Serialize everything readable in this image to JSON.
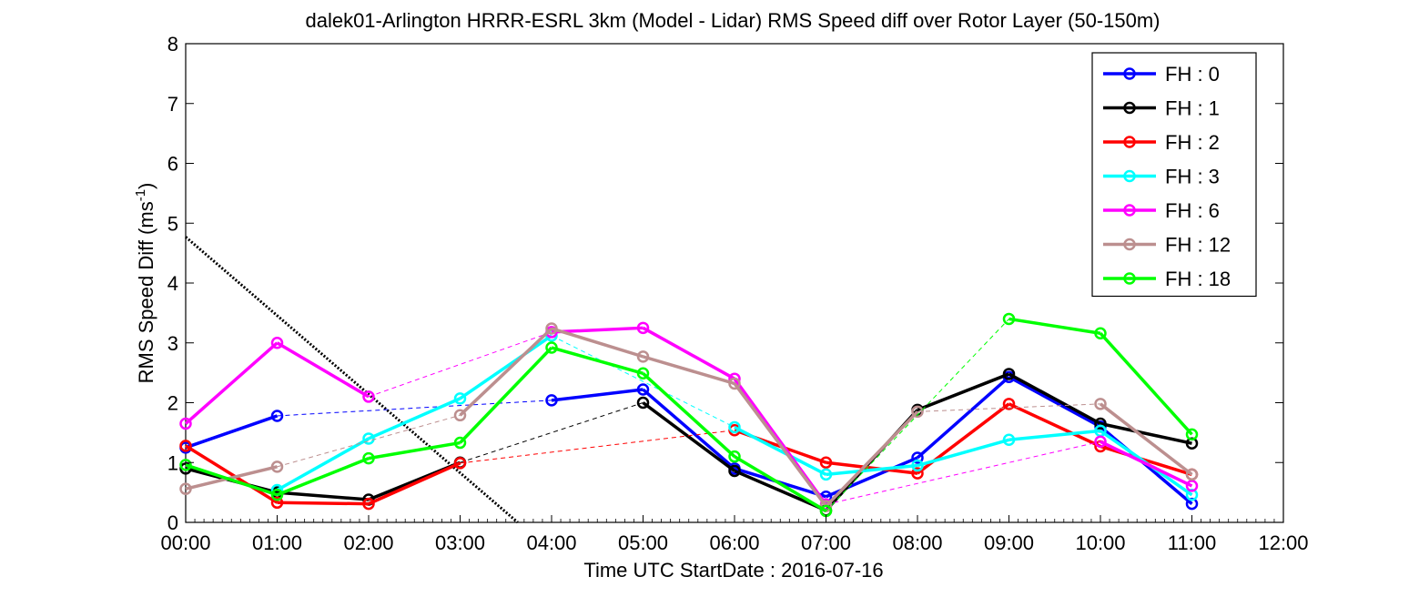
{
  "chart_data": {
    "type": "line",
    "title": "dalek01-Arlington HRRR-ESRL 3km (Model - Lidar) RMS Speed diff over Rotor Layer (50-150m)",
    "xlabel": "Time UTC    StartDate : 2016-07-16",
    "ylabel_main": "RMS Speed Diff (ms",
    "ylabel_sup": "-1",
    "ylabel_close": ")",
    "x_ticks": [
      "00:00",
      "01:00",
      "02:00",
      "03:00",
      "04:00",
      "05:00",
      "06:00",
      "07:00",
      "08:00",
      "09:00",
      "10:00",
      "11:00",
      "12:00"
    ],
    "x_hours": [
      0,
      1,
      2,
      3,
      4,
      5,
      6,
      7,
      8,
      9,
      10,
      11,
      12
    ],
    "y_ticks": [
      "0",
      "1",
      "2",
      "3",
      "4",
      "5",
      "6",
      "7",
      "8"
    ],
    "xlim": [
      0,
      12
    ],
    "ylim": [
      0,
      8
    ],
    "grid": false,
    "legend_position": "top-right",
    "series": [
      {
        "name": "FH : 0",
        "color": "#0000ff",
        "points": [
          [
            0,
            1.25
          ],
          [
            1,
            1.78
          ],
          [
            4,
            2.04
          ],
          [
            5,
            2.22
          ],
          [
            6,
            0.9
          ],
          [
            7,
            0.43
          ],
          [
            8,
            1.08
          ],
          [
            9,
            2.43
          ],
          [
            10,
            1.6
          ],
          [
            11,
            0.31
          ]
        ]
      },
      {
        "name": "FH : 1",
        "color": "#000000",
        "points": [
          [
            0,
            0.9
          ],
          [
            1,
            0.5
          ],
          [
            2,
            0.38
          ],
          [
            3,
            1.0
          ],
          [
            5,
            2.0
          ],
          [
            6,
            0.86
          ],
          [
            7,
            0.2
          ],
          [
            8,
            1.88
          ],
          [
            9,
            2.48
          ],
          [
            10,
            1.65
          ],
          [
            11,
            1.32
          ]
        ]
      },
      {
        "name": "FH : 2",
        "color": "#ff0000",
        "points": [
          [
            0,
            1.28
          ],
          [
            1,
            0.33
          ],
          [
            2,
            0.31
          ],
          [
            3,
            0.99
          ],
          [
            6,
            1.54
          ],
          [
            7,
            1.0
          ],
          [
            8,
            0.82
          ],
          [
            9,
            1.98
          ],
          [
            10,
            1.27
          ],
          [
            11,
            0.8
          ]
        ]
      },
      {
        "name": "FH : 3",
        "color": "#00ffff",
        "points": [
          [
            1,
            0.54
          ],
          [
            2,
            1.4
          ],
          [
            3,
            2.07
          ],
          [
            4,
            3.12
          ],
          [
            6,
            1.59
          ],
          [
            7,
            0.8
          ],
          [
            8,
            0.95
          ],
          [
            9,
            1.38
          ],
          [
            10,
            1.53
          ],
          [
            11,
            0.46
          ]
        ]
      },
      {
        "name": "FH : 6",
        "color": "#ff00ff",
        "points": [
          [
            0,
            1.65
          ],
          [
            1,
            3.0
          ],
          [
            2,
            2.1
          ],
          [
            4,
            3.18
          ],
          [
            5,
            3.25
          ],
          [
            6,
            2.4
          ],
          [
            7,
            0.3
          ],
          [
            10,
            1.35
          ],
          [
            11,
            0.61
          ]
        ]
      },
      {
        "name": "FH : 12",
        "color": "#bc8f8f",
        "points": [
          [
            0,
            0.56
          ],
          [
            1,
            0.93
          ],
          [
            3,
            1.79
          ],
          [
            4,
            3.24
          ],
          [
            5,
            2.77
          ],
          [
            6,
            2.32
          ],
          [
            7,
            0.27
          ],
          [
            8,
            1.85
          ],
          [
            10,
            1.98
          ],
          [
            11,
            0.8
          ]
        ]
      },
      {
        "name": "FH : 18",
        "color": "#00ff00",
        "points": [
          [
            0,
            0.96
          ],
          [
            1,
            0.46
          ],
          [
            2,
            1.07
          ],
          [
            3,
            1.33
          ],
          [
            4,
            2.92
          ],
          [
            5,
            2.49
          ],
          [
            6,
            1.1
          ],
          [
            7,
            0.19
          ],
          [
            9,
            3.4
          ],
          [
            10,
            3.16
          ],
          [
            11,
            1.47
          ]
        ]
      }
    ],
    "trend_line": {
      "color": "#000000",
      "points": [
        [
          0,
          4.77
        ],
        [
          3.63,
          0
        ]
      ]
    }
  }
}
